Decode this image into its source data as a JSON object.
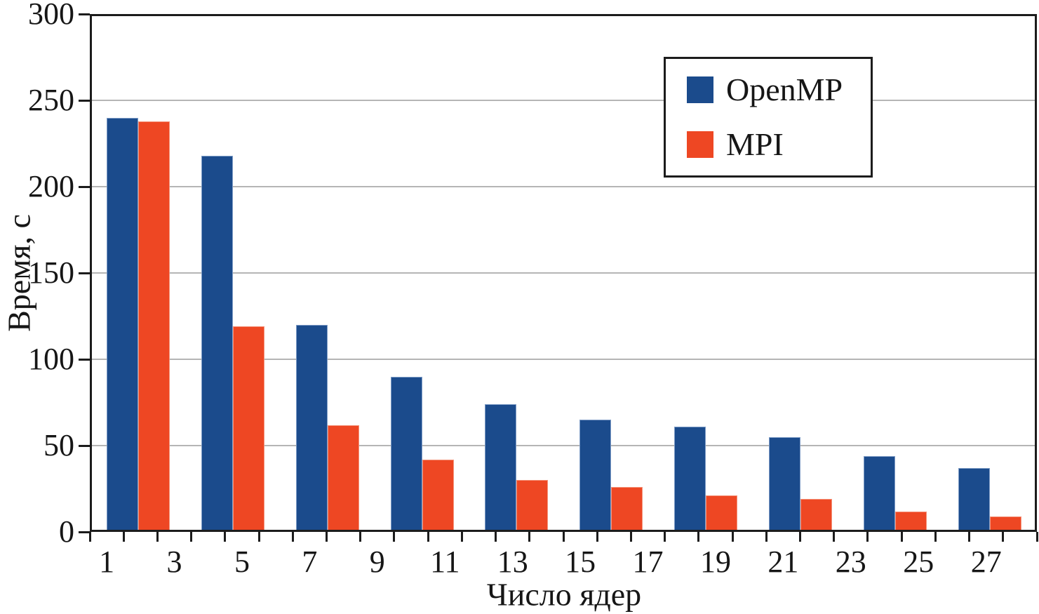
{
  "figure": {
    "background": "#ffffff",
    "axis_color": "#1c1c1c",
    "gridline_color": "#b5b5b5",
    "text_color": "#161616"
  },
  "chart_data": {
    "type": "bar",
    "title": "",
    "xlabel": "Число ядер",
    "ylabel": "Время, с",
    "ylim": [
      0,
      300
    ],
    "yticks": [
      0,
      50,
      100,
      150,
      200,
      250,
      300
    ],
    "xlim_axis_units": [
      0,
      28
    ],
    "xtick_labels": [
      "1",
      "3",
      "5",
      "7",
      "9",
      "11",
      "13",
      "15",
      "17",
      "19",
      "21",
      "23",
      "25",
      "27"
    ],
    "grid": "horizontal",
    "legend_position": "top-right",
    "group_centers_axis_units": [
      1.42,
      4.22,
      7.02,
      9.82,
      12.61,
      15.41,
      18.21,
      21.01,
      23.81,
      26.61
    ],
    "series": [
      {
        "name": "OpenMP",
        "color": "#1b4b8c",
        "edge_color": "#7e9cc6",
        "values": [
          240,
          218,
          120,
          90,
          74,
          65,
          61,
          55,
          44,
          37
        ]
      },
      {
        "name": "MPI",
        "color": "#ee4723",
        "edge_color": "#f4937a",
        "values": [
          238,
          119,
          62,
          42,
          30,
          26,
          21,
          19,
          12,
          9
        ]
      }
    ]
  }
}
